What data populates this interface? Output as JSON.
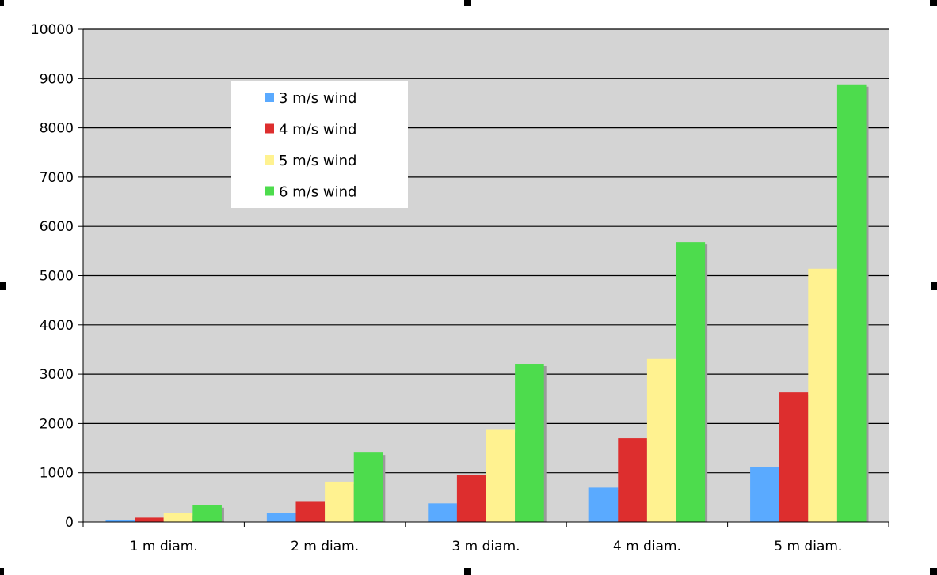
{
  "chart_data": {
    "type": "bar",
    "title": "",
    "xlabel": "",
    "ylabel": "",
    "categories": [
      "1 m diam.",
      "2 m diam.",
      "3 m diam.",
      "4 m diam.",
      "5 m diam."
    ],
    "ylim": [
      0,
      10000
    ],
    "yticks": [
      0,
      1000,
      2000,
      3000,
      4000,
      5000,
      6000,
      7000,
      8000,
      9000,
      10000
    ],
    "grid": true,
    "legend_position": "top-left",
    "plot_background": "#d4d4d4",
    "series": [
      {
        "name": "3 m/s wind",
        "color": "#5aaaff",
        "values": [
          40,
          180,
          380,
          700,
          1120
        ]
      },
      {
        "name": "4 m/s wind",
        "color": "#dd2e2e",
        "values": [
          90,
          410,
          960,
          1700,
          2630
        ]
      },
      {
        "name": "5 m/s wind",
        "color": "#fff290",
        "values": [
          180,
          820,
          1870,
          3310,
          5140
        ]
      },
      {
        "name": "6 m/s wind",
        "color": "#4ddc4d",
        "values": [
          340,
          1410,
          3210,
          5680,
          8880
        ]
      }
    ]
  }
}
